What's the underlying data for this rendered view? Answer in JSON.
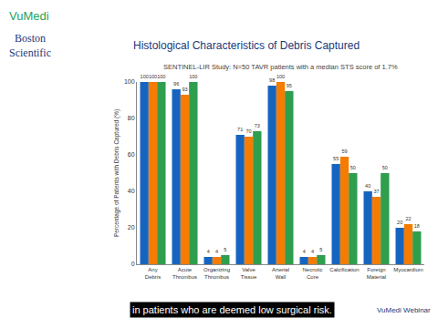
{
  "chart_data": {
    "type": "bar",
    "title": "Histological Characteristics of Debris Captured",
    "subtitle": "SENTINEL-LIR Study: N=50 TAVR patients with a median STS score of 1.7%",
    "y_label": "Percentage of Patients with Debris Captured (%)",
    "categories": [
      "Any Debris",
      "Acute Thrombus",
      "Organizing Thrombus",
      "Valve Tissue",
      "Arterial Wall",
      "Necrotic Core",
      "Calcification",
      "Foreign Material",
      "Myocardium"
    ],
    "series": [
      {
        "color": "#1565c0",
        "values": [
          100,
          96,
          4,
          71,
          98,
          4,
          55,
          40,
          20
        ]
      },
      {
        "color": "#f57c00",
        "values": [
          100,
          93,
          4,
          70,
          100,
          4,
          59,
          37,
          22
        ]
      },
      {
        "color": "#2e9e4f",
        "values": [
          100,
          100,
          5,
          73,
          95,
          5,
          50,
          50,
          18
        ]
      }
    ],
    "ylim": [
      0,
      100
    ],
    "yticks": [
      0,
      20,
      40,
      60,
      80,
      100
    ],
    "grid": false,
    "data_labels": true,
    "annotations": [
      "VuMedi",
      "Boston Scientific",
      "in patients who are deemed low surgical risk.",
      "VuMedi Webinar"
    ]
  }
}
